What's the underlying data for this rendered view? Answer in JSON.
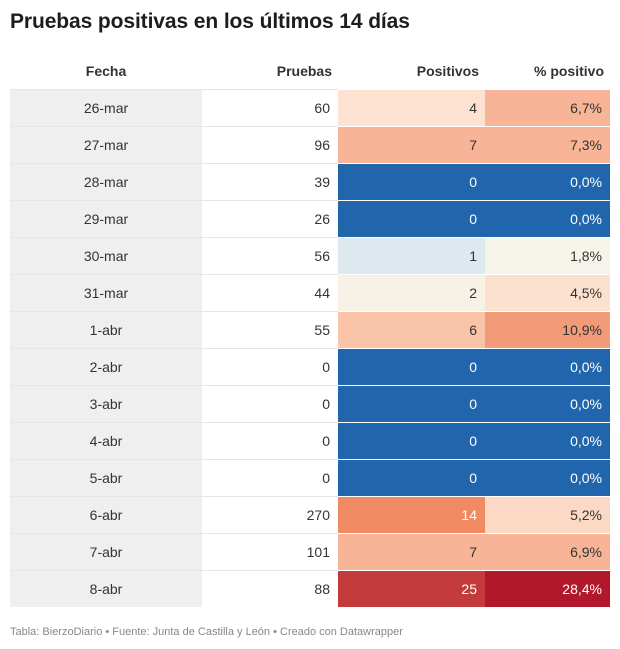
{
  "chart_data": {
    "type": "table",
    "title": "Pruebas positivas en los últimos 14 días",
    "columns": [
      "Fecha",
      "Pruebas",
      "Positivos",
      "% positivo"
    ],
    "rows": [
      {
        "fecha": "26-mar",
        "pruebas": "60",
        "positivos": "4",
        "pct": "6,7%",
        "pos_bg": "#fde2d2",
        "pos_fg": "#333333",
        "pct_bg": "#f7b497",
        "pct_fg": "#333333"
      },
      {
        "fecha": "27-mar",
        "pruebas": "96",
        "positivos": "7",
        "pct": "7,3%",
        "pos_bg": "#f7b497",
        "pos_fg": "#333333",
        "pct_bg": "#f7b497",
        "pct_fg": "#333333"
      },
      {
        "fecha": "28-mar",
        "pruebas": "39",
        "positivos": "0",
        "pct": "0,0%",
        "pos_bg": "#2166ac",
        "pos_fg": "#ffffff",
        "pct_bg": "#2166ac",
        "pct_fg": "#ffffff"
      },
      {
        "fecha": "29-mar",
        "pruebas": "26",
        "positivos": "0",
        "pct": "0,0%",
        "pos_bg": "#2166ac",
        "pos_fg": "#ffffff",
        "pct_bg": "#2166ac",
        "pct_fg": "#ffffff"
      },
      {
        "fecha": "30-mar",
        "pruebas": "56",
        "positivos": "1",
        "pct": "1,8%",
        "pos_bg": "#dde9ef",
        "pos_fg": "#333333",
        "pct_bg": "#f6f4ea",
        "pct_fg": "#333333"
      },
      {
        "fecha": "31-mar",
        "pruebas": "44",
        "positivos": "2",
        "pct": "4,5%",
        "pos_bg": "#f8f1e6",
        "pos_fg": "#333333",
        "pct_bg": "#fde1cf",
        "pct_fg": "#333333"
      },
      {
        "fecha": "1-abr",
        "pruebas": "55",
        "positivos": "6",
        "pct": "10,9%",
        "pos_bg": "#f9c4a8",
        "pos_fg": "#333333",
        "pct_bg": "#f19b79",
        "pct_fg": "#333333"
      },
      {
        "fecha": "2-abr",
        "pruebas": "0",
        "positivos": "0",
        "pct": "0,0%",
        "pos_bg": "#2166ac",
        "pos_fg": "#ffffff",
        "pct_bg": "#2166ac",
        "pct_fg": "#ffffff"
      },
      {
        "fecha": "3-abr",
        "pruebas": "0",
        "positivos": "0",
        "pct": "0,0%",
        "pos_bg": "#2166ac",
        "pos_fg": "#ffffff",
        "pct_bg": "#2166ac",
        "pct_fg": "#ffffff"
      },
      {
        "fecha": "4-abr",
        "pruebas": "0",
        "positivos": "0",
        "pct": "0,0%",
        "pos_bg": "#2166ac",
        "pos_fg": "#ffffff",
        "pct_bg": "#2166ac",
        "pct_fg": "#ffffff"
      },
      {
        "fecha": "5-abr",
        "pruebas": "0",
        "positivos": "0",
        "pct": "0,0%",
        "pos_bg": "#2166ac",
        "pos_fg": "#ffffff",
        "pct_bg": "#2166ac",
        "pct_fg": "#ffffff"
      },
      {
        "fecha": "6-abr",
        "pruebas": "270",
        "positivos": "14",
        "pct": "5,2%",
        "pos_bg": "#ef8a62",
        "pos_fg": "#ffffff",
        "pct_bg": "#fcd9c4",
        "pct_fg": "#333333"
      },
      {
        "fecha": "7-abr",
        "pruebas": "101",
        "positivos": "7",
        "pct": "6,9%",
        "pos_bg": "#f7b497",
        "pos_fg": "#333333",
        "pct_bg": "#f7b497",
        "pct_fg": "#333333"
      },
      {
        "fecha": "8-abr",
        "pruebas": "88",
        "positivos": "25",
        "pct": "28,4%",
        "pos_bg": "#c33c3b",
        "pos_fg": "#ffffff",
        "pct_bg": "#b2182b",
        "pct_fg": "#ffffff"
      }
    ]
  },
  "footer": "Tabla: BierzoDiario • Fuente: Junta de Castilla y León • Creado con Datawrapper"
}
